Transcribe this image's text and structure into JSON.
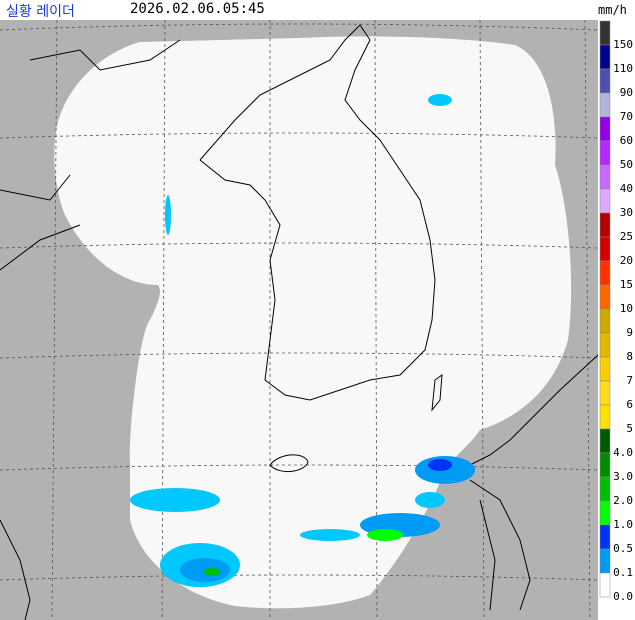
{
  "header": {
    "title": "실황 레이더",
    "timestamp": "2026.02.06.05:45",
    "unit": "mm/h"
  },
  "legend": {
    "items": [
      {
        "label": "150",
        "color": "#333333"
      },
      {
        "label": "110",
        "color": "#000390"
      },
      {
        "label": "90",
        "color": "#4c4eb1"
      },
      {
        "label": "70",
        "color": "#b3b4de"
      },
      {
        "label": "60",
        "color": "#9300e4"
      },
      {
        "label": "50",
        "color": "#b329ff"
      },
      {
        "label": "40",
        "color": "#c969ff"
      },
      {
        "label": "30",
        "color": "#e0a9ff"
      },
      {
        "label": "25",
        "color": "#b40000"
      },
      {
        "label": "20",
        "color": "#d20000"
      },
      {
        "label": "15",
        "color": "#ff3200"
      },
      {
        "label": "10",
        "color": "#ff6600"
      },
      {
        "label": "9",
        "color": "#ccaa00"
      },
      {
        "label": "8",
        "color": "#e0b900"
      },
      {
        "label": "7",
        "color": "#f9cd00"
      },
      {
        "label": "6",
        "color": "#ffdc1f"
      },
      {
        "label": "5",
        "color": "#ffe100"
      },
      {
        "label": "4.0",
        "color": "#005a00"
      },
      {
        "label": "3.0",
        "color": "#008c00"
      },
      {
        "label": "2.0",
        "color": "#00be00"
      },
      {
        "label": "1.0",
        "color": "#00ff00"
      },
      {
        "label": "0.5",
        "color": "#0033f5"
      },
      {
        "label": "0.1",
        "color": "#009bf5"
      },
      {
        "label": "0.0",
        "color": "#ffffff"
      }
    ]
  }
}
